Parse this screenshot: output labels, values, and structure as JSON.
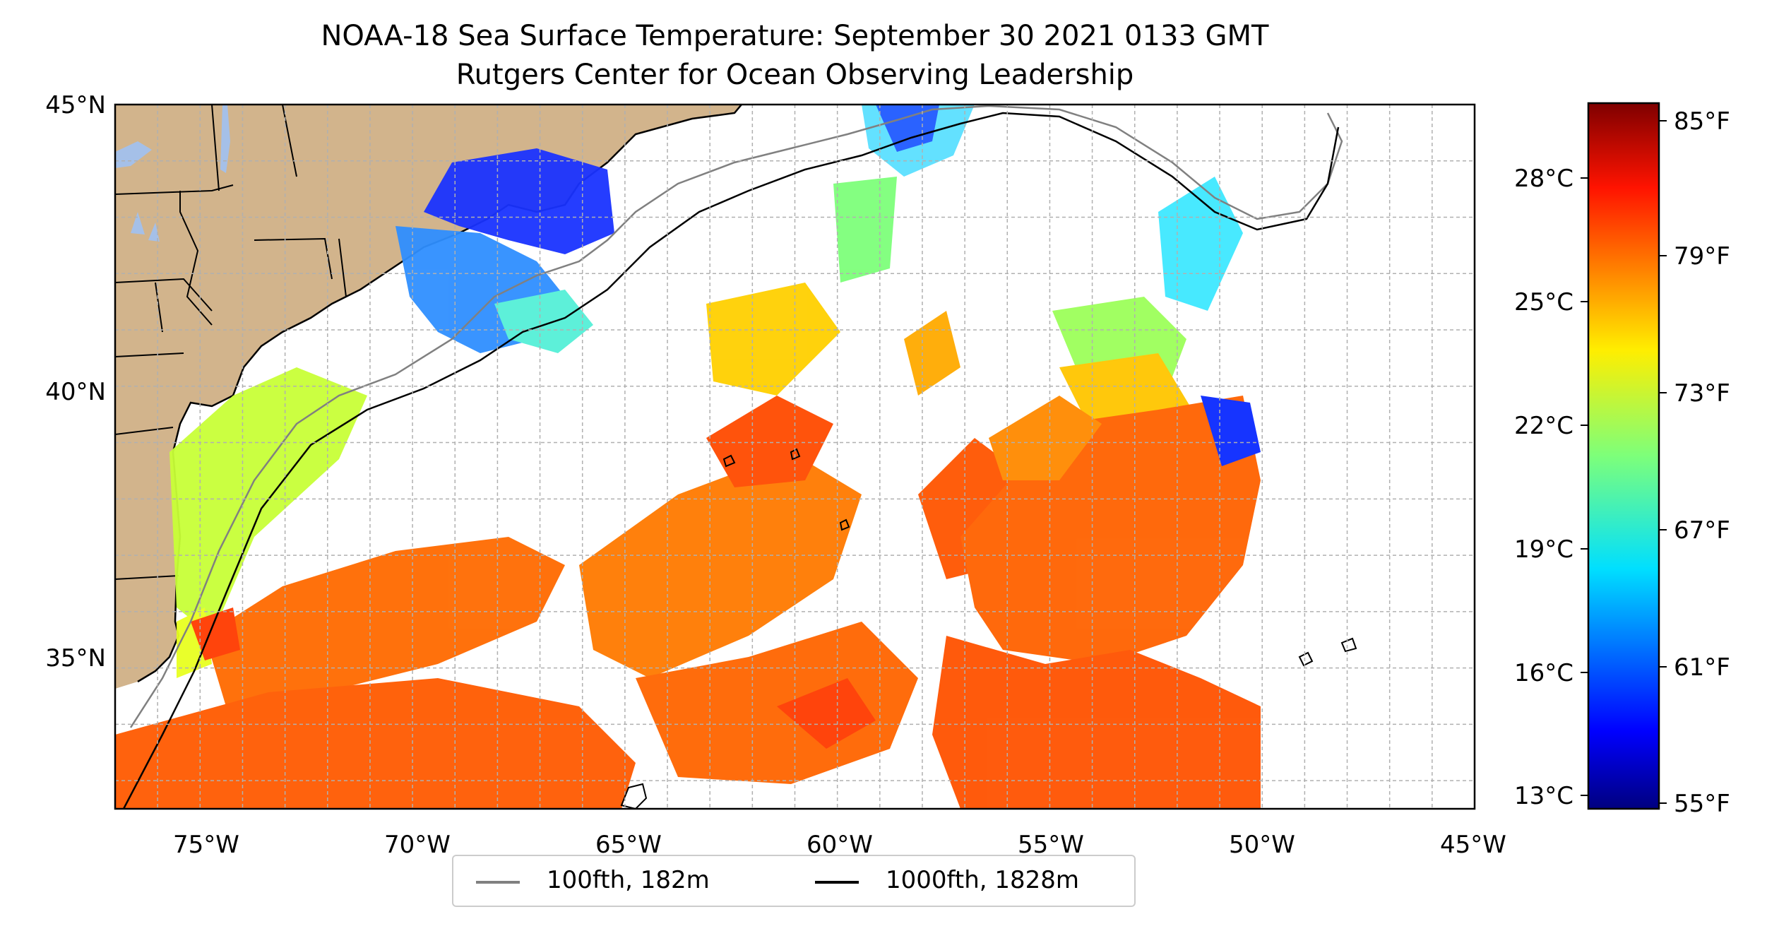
{
  "title": "NOAA-18 Sea Surface Temperature: September 30 2021 0133 GMT",
  "subtitle": "Rutgers Center for Ocean Observing Leadership",
  "map": {
    "lon_range": [
      -77,
      -45
    ],
    "lat_range": [
      32.5,
      45
    ],
    "lon_ticks": [
      "75°W",
      "70°W",
      "65°W",
      "60°W",
      "55°W",
      "50°W",
      "45°W"
    ],
    "lat_ticks": [
      "45°N",
      "40°N",
      "35°N"
    ],
    "grid": true,
    "colors": {
      "land": "#d2b48c",
      "lakes": "#a5c0e8",
      "ocean_missing": "#ffffff",
      "isobath_100fth": "#808080",
      "isobath_1000fth": "#000000"
    }
  },
  "legend": {
    "placement": "bottom-center",
    "items": [
      {
        "label": "100fth, 182m",
        "color": "#808080"
      },
      {
        "label": "1000fth, 1828m",
        "color": "#000000"
      }
    ]
  },
  "colorbar": {
    "colormap": "jet",
    "celsius_ticks": [
      "28°C",
      "25°C",
      "22°C",
      "19°C",
      "16°C",
      "13°C"
    ],
    "fahrenheit_ticks": [
      "85°F",
      "79°F",
      "73°F",
      "67°F",
      "61°F",
      "55°F"
    ]
  }
}
